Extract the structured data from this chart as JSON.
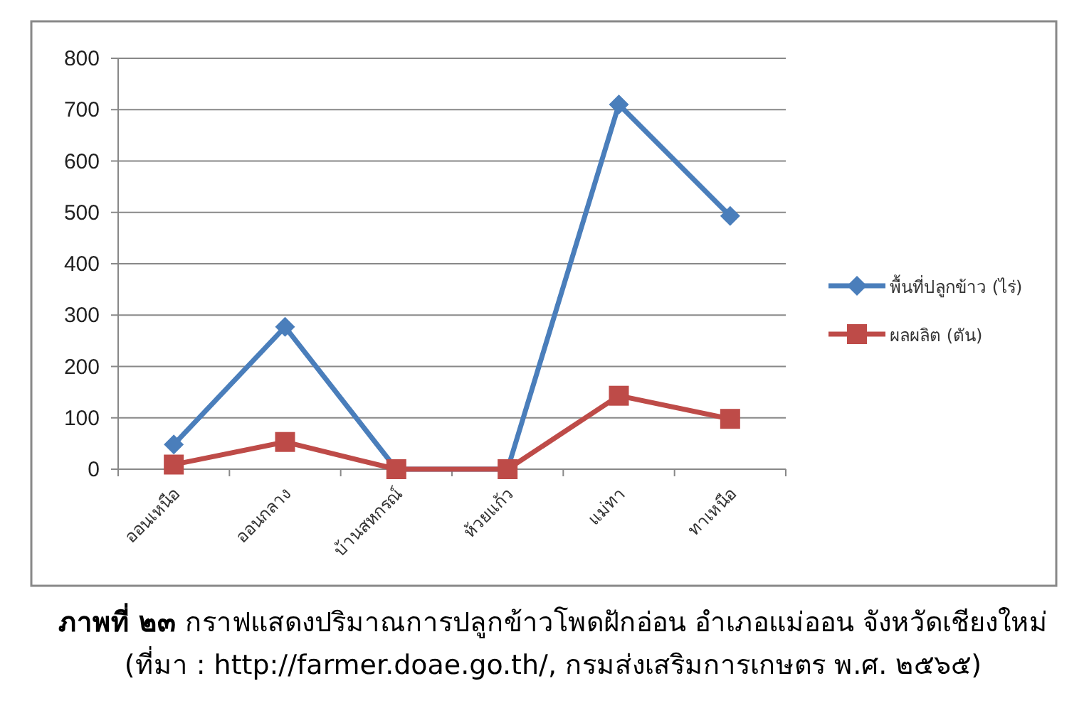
{
  "chart_data": {
    "type": "line",
    "title": "ภาพที่ ๒๓ กราฟแสดงปริมาณการปลูกข้าวโพดฝักอ่อน อำเภอแม่ออน จังหวัดเชียงใหม่",
    "subtitle": "(ที่มา : http://farmer.doae.go.th/, กรมส่งเสริมการเกษตร พ.ศ. ๒๕๖๕)",
    "categories": [
      "ออนเหนือ",
      "ออนกลาง",
      "บ้านสหกรณ์",
      "ห้วยแก้ว",
      "แม่ทา",
      "ทาเหนือ"
    ],
    "series": [
      {
        "name": "พื้นที่ปลูกข้าว (ไร่)",
        "color": "#4a7ebb",
        "marker": "diamond",
        "values": [
          48,
          277,
          0,
          0,
          710,
          493
        ]
      },
      {
        "name": "ผลผลิต (ตัน)",
        "color": "#be4b48",
        "marker": "square",
        "values": [
          9,
          53,
          0,
          0,
          143,
          98
        ]
      }
    ],
    "ylim": [
      0,
      800
    ],
    "yticks": [
      0,
      100,
      200,
      300,
      400,
      500,
      600,
      700,
      800
    ],
    "grid": "y",
    "legend": "right",
    "line_style": "solid"
  }
}
